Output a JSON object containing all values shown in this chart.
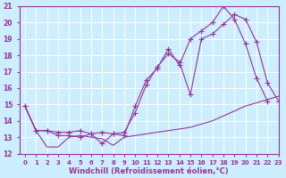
{
  "xlabel": "Windchill (Refroidissement éolien,°C)",
  "bg_color": "#cceeff",
  "grid_color": "#ffffff",
  "line_color": "#993399",
  "xlim": [
    -0.5,
    23
  ],
  "ylim": [
    12,
    21
  ],
  "xticks": [
    0,
    1,
    2,
    3,
    4,
    5,
    6,
    7,
    8,
    9,
    10,
    11,
    12,
    13,
    14,
    15,
    16,
    17,
    18,
    19,
    20,
    21,
    22,
    23
  ],
  "yticks": [
    12,
    13,
    14,
    15,
    16,
    17,
    18,
    19,
    20,
    21
  ],
  "line1_x": [
    0,
    1,
    2,
    3,
    4,
    5,
    6,
    7,
    8,
    9,
    10,
    11,
    12,
    13,
    14,
    15,
    16,
    17,
    18,
    19,
    20,
    21,
    22,
    23
  ],
  "line1_y": [
    14.9,
    13.4,
    12.4,
    12.4,
    13.0,
    13.1,
    13.0,
    12.9,
    12.5,
    13.0,
    13.1,
    13.2,
    13.3,
    13.4,
    13.5,
    13.6,
    13.8,
    14.0,
    14.3,
    14.6,
    14.9,
    15.1,
    15.3,
    15.5
  ],
  "line2_x": [
    0,
    1,
    2,
    3,
    4,
    5,
    6,
    7,
    8,
    9,
    10,
    11,
    12,
    13,
    14,
    15,
    16,
    17,
    18,
    19,
    20,
    21,
    22,
    23
  ],
  "line2_y": [
    14.9,
    13.4,
    13.4,
    13.3,
    13.3,
    13.4,
    13.2,
    13.3,
    13.2,
    13.3,
    14.5,
    16.2,
    17.3,
    18.1,
    17.6,
    15.6,
    19.0,
    19.3,
    19.9,
    20.5,
    20.2,
    18.8,
    16.3,
    15.2
  ],
  "line3_x": [
    0,
    1,
    2,
    3,
    4,
    5,
    6,
    7,
    8,
    9,
    10,
    11,
    12,
    13,
    14,
    15,
    16,
    17,
    18,
    19,
    20,
    21,
    22,
    23
  ],
  "line3_y": [
    14.9,
    13.4,
    13.4,
    13.1,
    13.1,
    13.0,
    13.2,
    12.6,
    13.2,
    13.1,
    14.9,
    16.5,
    17.2,
    18.4,
    17.4,
    19.0,
    19.5,
    20.0,
    21.0,
    20.2,
    18.7,
    16.6,
    15.2,
    null
  ]
}
